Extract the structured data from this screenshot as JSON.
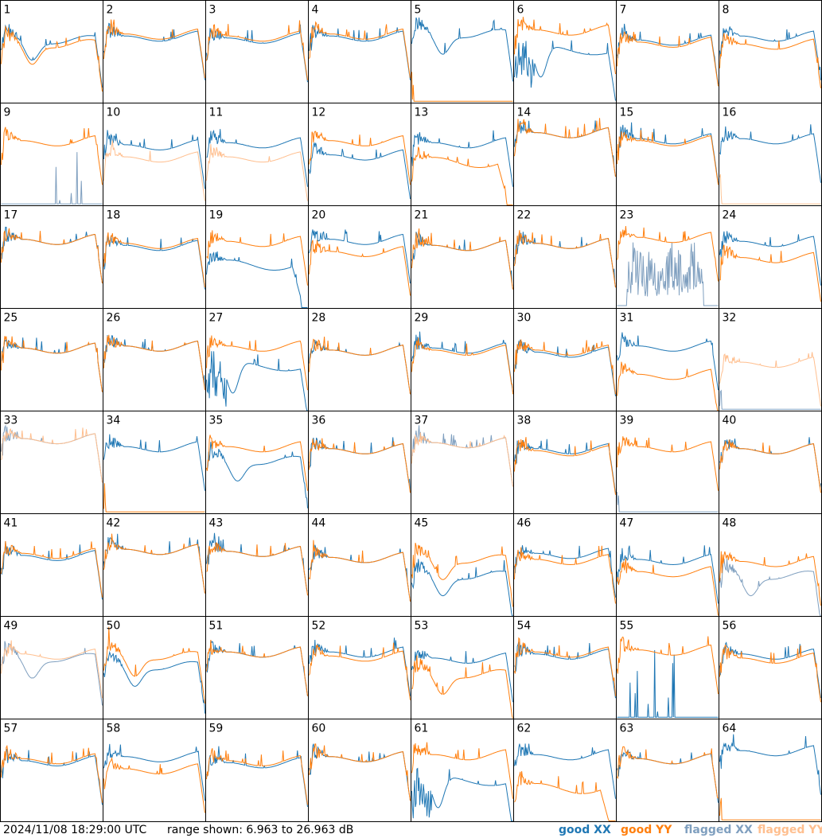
{
  "footer": {
    "timestamp": "2024/11/08 18:29:00 UTC",
    "range_label": "range shown: 6.963 to 26.963 dB"
  },
  "legend": [
    {
      "key": "good_xx",
      "label": "good XX",
      "color": "#1f77b4"
    },
    {
      "key": "good_yy",
      "label": "good YY",
      "color": "#ff7f0e"
    },
    {
      "key": "flagged_xx",
      "label": "flagged XX",
      "color": "#7f9fbf"
    },
    {
      "key": "flagged_yy",
      "label": "flagged YY",
      "color": "#ffbf8f"
    }
  ],
  "chart_data": {
    "type": "line",
    "layout": "8x8 small multiples",
    "y_range_db": [
      6.963,
      26.963
    ],
    "panels": [
      {
        "id": "1",
        "xx": "good",
        "yy": "good",
        "xx_shape": "dip",
        "yy_shape": "dip",
        "xx_level": 0.62,
        "yy_level": 0.58
      },
      {
        "id": "2",
        "xx": "good",
        "yy": "good",
        "xx_shape": "flat",
        "yy_shape": "flat",
        "xx_level": 0.64,
        "yy_level": 0.66
      },
      {
        "id": "3",
        "xx": "good",
        "yy": "good",
        "xx_shape": "flat",
        "yy_shape": "flat",
        "xx_level": 0.62,
        "yy_level": 0.64
      },
      {
        "id": "4",
        "xx": "good",
        "yy": "good",
        "xx_shape": "flat",
        "yy_shape": "flat",
        "xx_level": 0.64,
        "yy_level": 0.66
      },
      {
        "id": "5",
        "xx": "good",
        "yy": "good",
        "xx_shape": "dip",
        "yy_shape": "dead",
        "xx_level": 0.68,
        "yy_level": 0.0
      },
      {
        "id": "6",
        "xx": "good",
        "yy": "good",
        "xx_shape": "deep",
        "yy_shape": "flat",
        "xx_level": 0.52,
        "yy_level": 0.7
      },
      {
        "id": "7",
        "xx": "good",
        "yy": "good",
        "xx_shape": "flat",
        "yy_shape": "flat",
        "xx_level": 0.6,
        "yy_level": 0.58
      },
      {
        "id": "8",
        "xx": "good",
        "yy": "good",
        "xx_shape": "flat",
        "yy_shape": "flat",
        "xx_level": 0.64,
        "yy_level": 0.56
      },
      {
        "id": "9",
        "xx": "flagged",
        "yy": "good",
        "xx_shape": "spikes",
        "yy_shape": "flat",
        "xx_level": 0.0,
        "yy_level": 0.62
      },
      {
        "id": "10",
        "xx": "good",
        "yy": "flagged",
        "xx_shape": "flat",
        "yy_shape": "flat",
        "xx_level": 0.58,
        "yy_level": 0.46
      },
      {
        "id": "11",
        "xx": "good",
        "yy": "flagged",
        "xx_shape": "flat",
        "yy_shape": "flat",
        "xx_level": 0.6,
        "yy_level": 0.46
      },
      {
        "id": "12",
        "xx": "good",
        "yy": "good",
        "xx_shape": "flat",
        "yy_shape": "flat",
        "xx_level": 0.48,
        "yy_level": 0.62
      },
      {
        "id": "13",
        "xx": "good",
        "yy": "good",
        "xx_shape": "flat",
        "yy_shape": "drop",
        "xx_level": 0.6,
        "yy_level": 0.42
      },
      {
        "id": "14",
        "xx": "good",
        "yy": "good",
        "xx_shape": "flat",
        "yy_shape": "flat",
        "xx_level": 0.7,
        "yy_level": 0.7
      },
      {
        "id": "15",
        "xx": "good",
        "yy": "good",
        "xx_shape": "flat",
        "yy_shape": "flat",
        "xx_level": 0.64,
        "yy_level": 0.62
      },
      {
        "id": "16",
        "xx": "good",
        "yy": "flagged",
        "xx_shape": "flat",
        "yy_shape": "dead",
        "xx_level": 0.64,
        "yy_level": 0.0
      },
      {
        "id": "17",
        "xx": "good",
        "yy": "good",
        "xx_shape": "flat",
        "yy_shape": "flat",
        "xx_level": 0.66,
        "yy_level": 0.66
      },
      {
        "id": "18",
        "xx": "good",
        "yy": "good",
        "xx_shape": "flat",
        "yy_shape": "flat",
        "xx_level": 0.6,
        "yy_level": 0.62
      },
      {
        "id": "19",
        "xx": "good",
        "yy": "good",
        "xx_shape": "drop",
        "yy_shape": "flat",
        "xx_level": 0.42,
        "yy_level": 0.64
      },
      {
        "id": "20",
        "xx": "good",
        "yy": "good",
        "xx_shape": "flat",
        "yy_shape": "flat",
        "xx_level": 0.66,
        "yy_level": 0.54
      },
      {
        "id": "21",
        "xx": "good",
        "yy": "good",
        "xx_shape": "flat",
        "yy_shape": "flat",
        "xx_level": 0.6,
        "yy_level": 0.6
      },
      {
        "id": "22",
        "xx": "good",
        "yy": "good",
        "xx_shape": "flat",
        "yy_shape": "flat",
        "xx_level": 0.62,
        "yy_level": 0.62
      },
      {
        "id": "23",
        "xx": "flagged",
        "yy": "good",
        "xx_shape": "noise",
        "yy_shape": "flat",
        "xx_level": 0.3,
        "yy_level": 0.68
      },
      {
        "id": "24",
        "xx": "good",
        "yy": "good",
        "xx_shape": "flat",
        "yy_shape": "flat",
        "xx_level": 0.64,
        "yy_level": 0.48
      },
      {
        "id": "25",
        "xx": "good",
        "yy": "good",
        "xx_shape": "flat",
        "yy_shape": "flat",
        "xx_level": 0.6,
        "yy_level": 0.6
      },
      {
        "id": "26",
        "xx": "good",
        "yy": "good",
        "xx_shape": "flat",
        "yy_shape": "flat",
        "xx_level": 0.62,
        "yy_level": 0.62
      },
      {
        "id": "27",
        "xx": "good",
        "yy": "good",
        "xx_shape": "deep",
        "yy_shape": "flat",
        "xx_level": 0.44,
        "yy_level": 0.62
      },
      {
        "id": "28",
        "xx": "good",
        "yy": "good",
        "xx_shape": "flat",
        "yy_shape": "flat",
        "xx_level": 0.58,
        "yy_level": 0.58
      },
      {
        "id": "29",
        "xx": "good",
        "yy": "good",
        "xx_shape": "flat",
        "yy_shape": "flat",
        "xx_level": 0.6,
        "yy_level": 0.58
      },
      {
        "id": "30",
        "xx": "good",
        "yy": "good",
        "xx_shape": "flat",
        "yy_shape": "flat",
        "xx_level": 0.56,
        "yy_level": 0.58
      },
      {
        "id": "31",
        "xx": "good",
        "yy": "good",
        "xx_shape": "flat",
        "yy_shape": "flat",
        "xx_level": 0.62,
        "yy_level": 0.34
      },
      {
        "id": "32",
        "xx": "flagged",
        "yy": "flagged",
        "xx_shape": "dead",
        "yy_shape": "flat",
        "xx_level": 0.0,
        "yy_level": 0.46
      },
      {
        "id": "33",
        "xx": "flagged",
        "yy": "flagged",
        "xx_shape": "flat",
        "yy_shape": "flat",
        "xx_level": 0.72,
        "yy_level": 0.72
      },
      {
        "id": "34",
        "xx": "good",
        "yy": "good",
        "xx_shape": "flat",
        "yy_shape": "dead",
        "xx_level": 0.64,
        "yy_level": 0.04
      },
      {
        "id": "35",
        "xx": "good",
        "yy": "good",
        "xx_shape": "dip",
        "yy_shape": "flat",
        "xx_level": 0.52,
        "yy_level": 0.64
      },
      {
        "id": "36",
        "xx": "good",
        "yy": "good",
        "xx_shape": "flat",
        "yy_shape": "flat",
        "xx_level": 0.62,
        "yy_level": 0.62
      },
      {
        "id": "37",
        "xx": "flagged",
        "yy": "flagged",
        "xx_shape": "flat",
        "yy_shape": "flat",
        "xx_level": 0.68,
        "yy_level": 0.68
      },
      {
        "id": "38",
        "xx": "good",
        "yy": "good",
        "xx_shape": "flat",
        "yy_shape": "flat",
        "xx_level": 0.62,
        "yy_level": 0.6
      },
      {
        "id": "39",
        "xx": "flagged",
        "yy": "good",
        "xx_shape": "dead",
        "yy_shape": "flat",
        "xx_level": 0.0,
        "yy_level": 0.64
      },
      {
        "id": "40",
        "xx": "good",
        "yy": "good",
        "xx_shape": "flat",
        "yy_shape": "flat",
        "xx_level": 0.62,
        "yy_level": 0.62
      },
      {
        "id": "41",
        "xx": "good",
        "yy": "good",
        "xx_shape": "flat",
        "yy_shape": "flat",
        "xx_level": 0.58,
        "yy_level": 0.6
      },
      {
        "id": "42",
        "xx": "good",
        "yy": "good",
        "xx_shape": "flat",
        "yy_shape": "flat",
        "xx_level": 0.64,
        "yy_level": 0.64
      },
      {
        "id": "43",
        "xx": "good",
        "yy": "good",
        "xx_shape": "flat",
        "yy_shape": "flat",
        "xx_level": 0.62,
        "yy_level": 0.62
      },
      {
        "id": "44",
        "xx": "good",
        "yy": "good",
        "xx_shape": "flat",
        "yy_shape": "flat",
        "xx_level": 0.56,
        "yy_level": 0.56
      },
      {
        "id": "45",
        "xx": "good",
        "yy": "good",
        "xx_shape": "dip",
        "yy_shape": "dip",
        "xx_level": 0.4,
        "yy_level": 0.56
      },
      {
        "id": "46",
        "xx": "good",
        "yy": "good",
        "xx_shape": "flat",
        "yy_shape": "flat",
        "xx_level": 0.6,
        "yy_level": 0.54
      },
      {
        "id": "47",
        "xx": "good",
        "yy": "good",
        "xx_shape": "flat",
        "yy_shape": "flat",
        "xx_level": 0.54,
        "yy_level": 0.42
      },
      {
        "id": "48",
        "xx": "flagged",
        "yy": "good",
        "xx_shape": "dip",
        "yy_shape": "flat",
        "xx_level": 0.4,
        "yy_level": 0.52
      },
      {
        "id": "49",
        "xx": "flagged",
        "yy": "flagged",
        "xx_shape": "dip",
        "yy_shape": "flat",
        "xx_level": 0.6,
        "yy_level": 0.62
      },
      {
        "id": "50",
        "xx": "good",
        "yy": "good",
        "xx_shape": "dip",
        "yy_shape": "dip",
        "xx_level": 0.52,
        "yy_level": 0.62
      },
      {
        "id": "51",
        "xx": "good",
        "yy": "good",
        "xx_shape": "flat",
        "yy_shape": "flat",
        "xx_level": 0.64,
        "yy_level": 0.64
      },
      {
        "id": "52",
        "xx": "good",
        "yy": "good",
        "xx_shape": "flat",
        "yy_shape": "flat",
        "xx_level": 0.64,
        "yy_level": 0.6
      },
      {
        "id": "53",
        "xx": "good",
        "yy": "good",
        "xx_shape": "flat",
        "yy_shape": "dip",
        "xx_level": 0.58,
        "yy_level": 0.44
      },
      {
        "id": "54",
        "xx": "good",
        "yy": "good",
        "xx_shape": "flat",
        "yy_shape": "flat",
        "xx_level": 0.62,
        "yy_level": 0.64
      },
      {
        "id": "55",
        "xx": "good",
        "yy": "good",
        "xx_shape": "spikes",
        "yy_shape": "flat",
        "xx_level": 0.0,
        "yy_level": 0.66
      },
      {
        "id": "56",
        "xx": "good",
        "yy": "good",
        "xx_shape": "flat",
        "yy_shape": "flat",
        "xx_level": 0.62,
        "yy_level": 0.58
      },
      {
        "id": "57",
        "xx": "good",
        "yy": "good",
        "xx_shape": "flat",
        "yy_shape": "flat",
        "xx_level": 0.58,
        "yy_level": 0.6
      },
      {
        "id": "58",
        "xx": "good",
        "yy": "good",
        "xx_shape": "flat",
        "yy_shape": "flat",
        "xx_level": 0.62,
        "yy_level": 0.5
      },
      {
        "id": "59",
        "xx": "good",
        "yy": "good",
        "xx_shape": "flat",
        "yy_shape": "flat",
        "xx_level": 0.56,
        "yy_level": 0.58
      },
      {
        "id": "60",
        "xx": "good",
        "yy": "good",
        "xx_shape": "flat",
        "yy_shape": "flat",
        "xx_level": 0.62,
        "yy_level": 0.62
      },
      {
        "id": "61",
        "xx": "good",
        "yy": "good",
        "xx_shape": "deep",
        "yy_shape": "flat",
        "xx_level": 0.4,
        "yy_level": 0.64
      },
      {
        "id": "62",
        "xx": "good",
        "yy": "good",
        "xx_shape": "flat",
        "yy_shape": "drop",
        "xx_level": 0.64,
        "yy_level": 0.32
      },
      {
        "id": "63",
        "xx": "good",
        "yy": "good",
        "xx_shape": "flat",
        "yy_shape": "flat",
        "xx_level": 0.6,
        "yy_level": 0.6
      },
      {
        "id": "64",
        "xx": "good",
        "yy": "good",
        "xx_shape": "flat",
        "yy_shape": "dead",
        "xx_level": 0.68,
        "yy_level": 0.0
      }
    ]
  }
}
